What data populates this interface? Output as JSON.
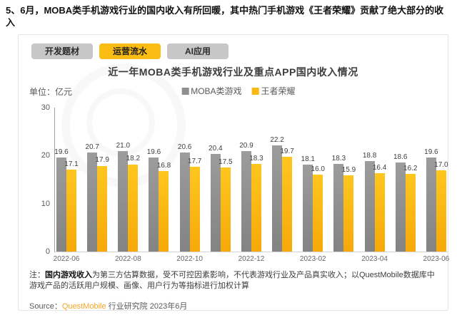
{
  "page": {
    "heading": "5、6月，MOBA类手机游戏行业的国内收入有所回暖，其中热门手机游戏《王者荣耀》贡献了绝大部分的收入"
  },
  "tabs": [
    {
      "label": "开发题材",
      "active": false
    },
    {
      "label": "运营流水",
      "active": true
    },
    {
      "label": "AI应用",
      "active": false
    }
  ],
  "colors": {
    "tab_active": "#fbbd13",
    "tab_inactive": "#c7c7c7",
    "series_moba": "#8f8f8f",
    "series_wzry": "#fbb713",
    "brand_orange": "#f5a623"
  },
  "chart": {
    "title": "近一年MOBA类手机游戏行业及重点APP国内收入情况",
    "unit_label": "单位：亿元"
  },
  "chart_data": {
    "type": "bar",
    "title": "近一年MOBA类手机游戏行业及重点APP国内收入情况",
    "ylabel": "单位：亿元",
    "ylim": [
      0,
      30
    ],
    "yticks": [
      0,
      10,
      20,
      30
    ],
    "grid": false,
    "legend_position": "top-center",
    "categories": [
      "2022-06",
      "2022-07",
      "2022-08",
      "2022-09",
      "2022-10",
      "2022-11",
      "2022-12",
      "2023-01",
      "2023-02",
      "2023-03",
      "2023-04",
      "2023-05",
      "2023-06"
    ],
    "x_tick_labels": [
      "2022-06",
      "2022-08",
      "2022-10",
      "2022-12",
      "2023-02",
      "2023-04",
      "2023-06"
    ],
    "series": [
      {
        "name": "MOBA类游戏",
        "color": "#8f8f8f",
        "values": [
          19.6,
          20.7,
          21.0,
          19.6,
          20.6,
          20.4,
          20.9,
          22.2,
          18.1,
          18.3,
          18.8,
          18.6,
          19.6
        ]
      },
      {
        "name": "王者荣耀",
        "color": "#fbb713",
        "values": [
          17.1,
          17.9,
          18.2,
          16.8,
          17.7,
          17.5,
          18.3,
          19.7,
          16.0,
          15.9,
          16.4,
          16.2,
          17.0
        ]
      }
    ]
  },
  "note": {
    "prefix": "注：",
    "bold_part": "国内游戏收入",
    "rest": "为第三方估算数据，受不可控因素影响，不代表游戏行业及产品真实收入；以QuestMobile数据库中游戏产品的活跃用户规模、画像、用户行为等指标进行加权计算"
  },
  "source": {
    "label": "Source：",
    "brand": "QuestMobile",
    "suffix": " 行业研究院 2023年6月"
  }
}
